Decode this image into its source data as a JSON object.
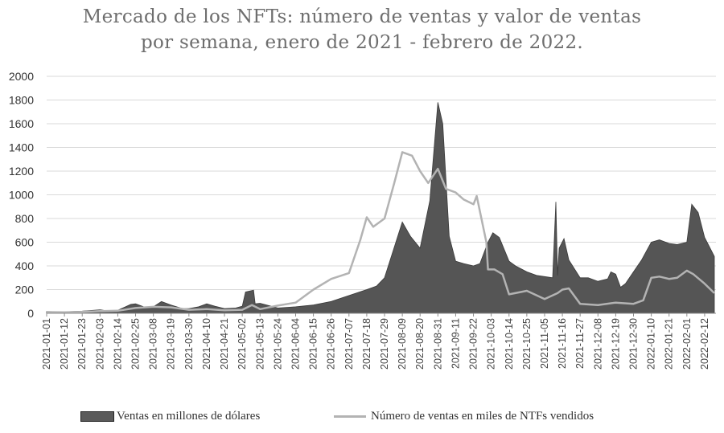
{
  "title_line1": "Mercado de los NFTs: número de ventas y valor de ventas",
  "title_line2": "por semana, enero de 2021 - febrero de 2022.",
  "chart_data": {
    "type": "area",
    "ylim": [
      0,
      2000
    ],
    "yticks": [
      0,
      200,
      400,
      600,
      800,
      1000,
      1200,
      1400,
      1600,
      1800,
      2000
    ],
    "grid": true,
    "legend_position": "bottom",
    "xticks": [
      "2021-01-01",
      "2021-01-12",
      "2021-01-23",
      "2021-02-03",
      "2021-02-14",
      "2021-02-25",
      "2021-03-08",
      "2021-03-19",
      "2021-03-30",
      "2021-04-10",
      "2021-04-21",
      "2021-05-02",
      "2021-05-13",
      "2021-05-24",
      "2021-06-04",
      "2021-06-15",
      "2021-06-26",
      "2021-07-07",
      "2021-07-18",
      "2021-07-29",
      "2021-08-09",
      "2021-08-20",
      "2021-08-31",
      "2021-09-11",
      "2021-09-22",
      "2021-10-03",
      "2021-10-14",
      "2021-10-25",
      "2021-11-05",
      "2021-11-16",
      "2021-11-27",
      "2021-12-08",
      "2021-12-19",
      "2021-12-30",
      "2022-01-10",
      "2022-01-21",
      "2022-02-01",
      "2022-02-12"
    ],
    "series": [
      {
        "name": "Ventas en millones de dólares",
        "style": "area",
        "color": "#555555",
        "x": [
          "2021-01-01",
          "2021-01-12",
          "2021-01-23",
          "2021-02-03",
          "2021-02-08",
          "2021-02-14",
          "2021-02-22",
          "2021-02-25",
          "2021-03-03",
          "2021-03-08",
          "2021-03-13",
          "2021-03-19",
          "2021-03-26",
          "2021-03-30",
          "2021-04-05",
          "2021-04-10",
          "2021-04-15",
          "2021-04-21",
          "2021-04-28",
          "2021-05-02",
          "2021-05-04",
          "2021-05-09",
          "2021-05-10",
          "2021-05-13",
          "2021-05-24",
          "2021-06-04",
          "2021-06-15",
          "2021-06-26",
          "2021-07-07",
          "2021-07-18",
          "2021-07-24",
          "2021-07-29",
          "2021-08-05",
          "2021-08-09",
          "2021-08-14",
          "2021-08-20",
          "2021-08-26",
          "2021-08-29",
          "2021-08-31",
          "2021-09-03",
          "2021-09-07",
          "2021-09-11",
          "2021-09-16",
          "2021-09-22",
          "2021-09-26",
          "2021-10-01",
          "2021-10-04",
          "2021-10-08",
          "2021-10-14",
          "2021-10-18",
          "2021-10-25",
          "2021-10-31",
          "2021-11-05",
          "2021-11-10",
          "2021-11-12",
          "2021-11-13",
          "2021-11-14",
          "2021-11-17",
          "2021-11-20",
          "2021-11-27",
          "2021-12-02",
          "2021-12-08",
          "2021-12-14",
          "2021-12-16",
          "2021-12-19",
          "2021-12-22",
          "2021-12-25",
          "2021-12-30",
          "2022-01-04",
          "2022-01-10",
          "2022-01-15",
          "2022-01-21",
          "2022-01-26",
          "2022-02-01",
          "2022-02-04",
          "2022-02-08",
          "2022-02-12",
          "2022-02-15",
          "2022-02-18"
        ],
        "values": [
          15,
          12,
          18,
          30,
          20,
          25,
          75,
          80,
          50,
          55,
          100,
          70,
          40,
          40,
          55,
          80,
          60,
          40,
          45,
          60,
          180,
          195,
          80,
          85,
          45,
          55,
          70,
          100,
          150,
          200,
          230,
          300,
          600,
          770,
          650,
          550,
          950,
          1450,
          1780,
          1600,
          650,
          440,
          420,
          400,
          420,
          600,
          680,
          640,
          440,
          400,
          350,
          320,
          310,
          300,
          940,
          320,
          550,
          630,
          450,
          300,
          300,
          270,
          290,
          350,
          330,
          220,
          250,
          350,
          450,
          600,
          620,
          590,
          580,
          600,
          920,
          850,
          640,
          560,
          480
        ]
      },
      {
        "name": "Número de ventas en miles de NTFs vendidos",
        "style": "line",
        "color": "#b3b3b3",
        "x": [
          "2021-01-01",
          "2021-01-12",
          "2021-01-23",
          "2021-02-03",
          "2021-02-14",
          "2021-02-25",
          "2021-03-08",
          "2021-03-19",
          "2021-03-30",
          "2021-04-10",
          "2021-04-21",
          "2021-05-02",
          "2021-05-08",
          "2021-05-13",
          "2021-05-24",
          "2021-06-04",
          "2021-06-15",
          "2021-06-26",
          "2021-07-07",
          "2021-07-14",
          "2021-07-18",
          "2021-07-22",
          "2021-07-29",
          "2021-08-04",
          "2021-08-09",
          "2021-08-15",
          "2021-08-20",
          "2021-08-25",
          "2021-08-31",
          "2021-09-05",
          "2021-09-11",
          "2021-09-16",
          "2021-09-22",
          "2021-09-24",
          "2021-09-30",
          "2021-10-01",
          "2021-10-05",
          "2021-10-10",
          "2021-10-14",
          "2021-10-25",
          "2021-11-05",
          "2021-11-13",
          "2021-11-16",
          "2021-11-20",
          "2021-11-27",
          "2021-12-08",
          "2021-12-19",
          "2021-12-30",
          "2022-01-05",
          "2022-01-10",
          "2022-01-15",
          "2022-01-21",
          "2022-01-26",
          "2022-02-01",
          "2022-02-05",
          "2022-02-12",
          "2022-02-18"
        ],
        "values": [
          10,
          8,
          12,
          18,
          22,
          45,
          55,
          50,
          30,
          35,
          25,
          30,
          70,
          35,
          65,
          90,
          200,
          290,
          340,
          620,
          810,
          730,
          800,
          1100,
          1360,
          1330,
          1200,
          1100,
          1220,
          1050,
          1020,
          960,
          920,
          990,
          600,
          370,
          370,
          330,
          160,
          190,
          120,
          170,
          200,
          210,
          80,
          70,
          90,
          80,
          110,
          300,
          310,
          290,
          300,
          360,
          330,
          250,
          170
        ]
      }
    ]
  }
}
